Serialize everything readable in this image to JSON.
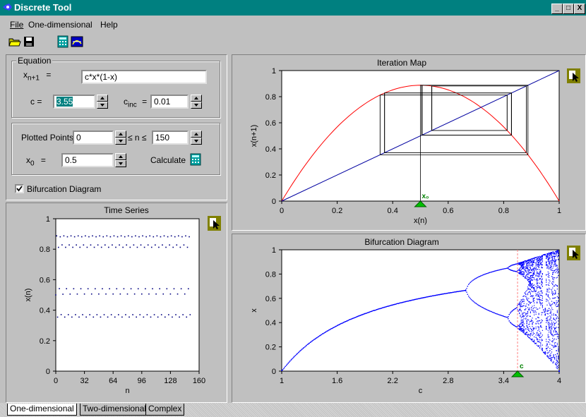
{
  "window": {
    "title": "Discrete Tool",
    "minimize": "_",
    "maximize": "□",
    "close": "X"
  },
  "menu": [
    {
      "label": "File"
    },
    {
      "label": "One-dimensional"
    },
    {
      "label": "Help"
    }
  ],
  "toolbar": {
    "icons": [
      "open-folder-icon",
      "save-disk-icon",
      "calculator-icon",
      "graph-window-icon"
    ]
  },
  "equation": {
    "group_label": "Equation",
    "lhs_var": "x",
    "lhs_sub": "n+1",
    "equals": "=",
    "expression": "c*x*(1-x)",
    "c_label": "c  =",
    "c_value": "3.55",
    "cinc_label_base": "c",
    "cinc_label_sub": "inc",
    "cinc_equals": "=",
    "cinc_value": "0.01"
  },
  "iteration": {
    "plotted_points_label": "Plotted Points",
    "n_start": "0",
    "range_label": "≤ n ≤",
    "n_end": "150",
    "x0_label_base": "x",
    "x0_label_sub": "0",
    "x0_equals": "=",
    "x0_value": "0.5",
    "calculate_label": "Calculate",
    "calculate_icon": "calculator-icon"
  },
  "bifurcation_checkbox": {
    "label": "Bifurcation Diagram",
    "checked": true
  },
  "tabs": [
    {
      "label": "One-dimensional"
    },
    {
      "label": "Two-dimensional"
    },
    {
      "label": "Complex"
    }
  ],
  "chart_data": [
    {
      "type": "line",
      "title": "Iteration Map",
      "xlabel": "x(n)",
      "ylabel": "x(n+1)",
      "xlim": [
        0,
        1
      ],
      "ylim": [
        0,
        1
      ],
      "xticks": [
        "0",
        "0.2",
        "0.4",
        "0.6",
        "0.8",
        "1"
      ],
      "yticks": [
        "0",
        "0.2",
        "0.4",
        "0.6",
        "0.8",
        "1"
      ],
      "marker_label": "x₀",
      "marker_x": 0.5,
      "series": [
        {
          "role": "map-curve",
          "c": 3.55,
          "color": "#ff0000"
        },
        {
          "role": "identity",
          "color": "#0000a0"
        },
        {
          "role": "cobweb",
          "color": "#000000",
          "x0": 0.5,
          "n_start": 0,
          "n_end": 150
        }
      ]
    },
    {
      "type": "scatter",
      "title": "Time Series",
      "xlabel": "n",
      "ylabel": "x(n)",
      "xlim": [
        0,
        160
      ],
      "ylim": [
        0,
        1
      ],
      "xticks": [
        "0",
        "32",
        "64",
        "96",
        "128",
        "160"
      ],
      "yticks": [
        "0",
        "0.2",
        "0.4",
        "0.6",
        "0.8",
        "1"
      ],
      "c": 3.55,
      "x0": 0.5,
      "n_start": 0,
      "n_end": 150,
      "color": "#000080"
    },
    {
      "type": "scatter",
      "title": "Bifurcation Diagram",
      "xlabel": "c",
      "ylabel": "x",
      "xlim": [
        1,
        4
      ],
      "ylim": [
        0,
        1
      ],
      "xticks": [
        "1",
        "1.6",
        "2.2",
        "2.8",
        "3.4",
        "4"
      ],
      "yticks": [
        "0",
        "0.2",
        "0.4",
        "0.6",
        "0.8",
        "1"
      ],
      "marker_label": "c",
      "marker_c": 3.55,
      "color": "#0000ff",
      "marker_line_color": "#ff8080"
    }
  ],
  "colors": {
    "titlebar": "#008080",
    "face": "#c0c0c0",
    "marker": "#00c000",
    "cursor_icon": "#808000"
  }
}
